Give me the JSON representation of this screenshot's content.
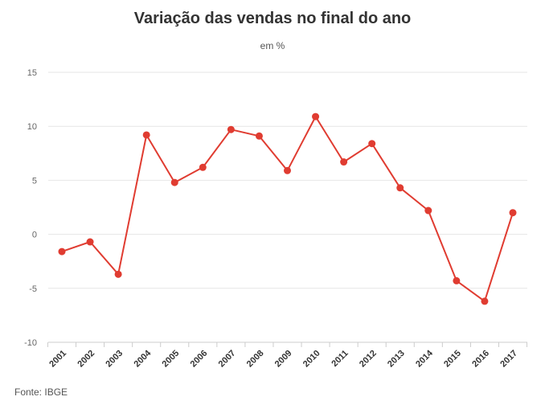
{
  "chart_data": {
    "type": "line",
    "title": "Variação das vendas no final do ano",
    "subtitle": "em %",
    "source": "Fonte: IBGE",
    "xlabel": "",
    "ylabel": "",
    "ylim": [
      -10,
      15
    ],
    "yticks": [
      15,
      10,
      5,
      0,
      -5,
      -10
    ],
    "grid": true,
    "legend": "none",
    "line_color": "#e03c31",
    "categories": [
      "2001",
      "2002",
      "2003",
      "2004",
      "2005",
      "2006",
      "2007",
      "2008",
      "2009",
      "2010",
      "2011",
      "2012",
      "2013",
      "2014",
      "2015",
      "2016",
      "2017"
    ],
    "values": [
      -1.6,
      -0.7,
      -3.7,
      9.2,
      4.8,
      6.2,
      9.7,
      9.1,
      5.9,
      10.9,
      6.7,
      8.4,
      4.3,
      2.2,
      -4.3,
      -6.2,
      2.0
    ]
  }
}
